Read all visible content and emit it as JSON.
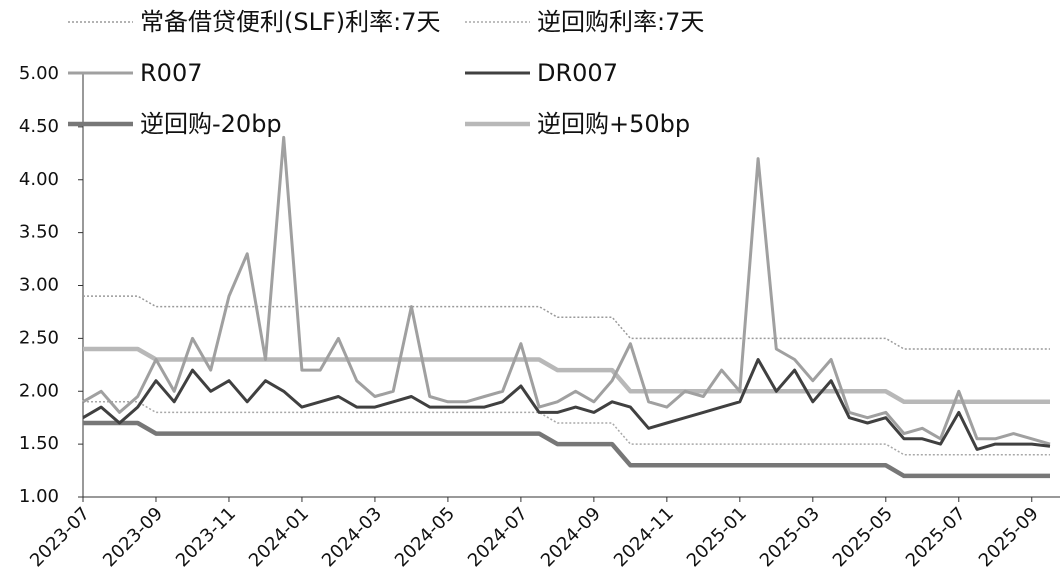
{
  "chart_data": {
    "type": "line",
    "categories": [
      "2023-07",
      null,
      null,
      null,
      "2023-09",
      null,
      null,
      null,
      "2023-11",
      null,
      null,
      null,
      "2024-01",
      null,
      null,
      null,
      "2024-03",
      null,
      null,
      null,
      "2024-05",
      null,
      null,
      null,
      "2024-07",
      null,
      null,
      null,
      "2024-09",
      null,
      null,
      null,
      "2024-11",
      null,
      null,
      null,
      "2025-01",
      null,
      null,
      null,
      "2025-03",
      null,
      null,
      null,
      "2025-05",
      null,
      null,
      null,
      "2025-07",
      null,
      null,
      null,
      "2025-09",
      null
    ],
    "ylim": [
      1,
      5
    ],
    "yticks": [
      {
        "value": 1,
        "label": "1.00"
      },
      {
        "value": 1.5,
        "label": "1.50"
      },
      {
        "value": 2,
        "label": "2.00"
      },
      {
        "value": 2.5,
        "label": "2.50"
      },
      {
        "value": 3,
        "label": "3.00"
      },
      {
        "value": 3.5,
        "label": "3.50"
      },
      {
        "value": 4,
        "label": "4.00"
      },
      {
        "value": 4.5,
        "label": "4.50"
      },
      {
        "value": 5,
        "label": "5.00"
      }
    ],
    "series": [
      {
        "name": "常备借贷便利(SLF)利率:7天",
        "color": "#9a9a9a",
        "style": "dotted",
        "values": [
          2.9,
          2.9,
          2.9,
          2.9,
          2.8,
          2.8,
          2.8,
          2.8,
          2.8,
          2.8,
          2.8,
          2.8,
          2.8,
          2.8,
          2.8,
          2.8,
          2.8,
          2.8,
          2.8,
          2.8,
          2.8,
          2.8,
          2.8,
          2.8,
          2.8,
          2.8,
          2.7,
          2.7,
          2.7,
          2.7,
          2.5,
          2.5,
          2.5,
          2.5,
          2.5,
          2.5,
          2.5,
          2.5,
          2.5,
          2.5,
          2.5,
          2.5,
          2.5,
          2.5,
          2.5,
          2.4,
          2.4,
          2.4,
          2.4,
          2.4,
          2.4,
          2.4,
          2.4,
          2.4
        ]
      },
      {
        "name": "逆回购利率:7天",
        "color": "#a8a8a8",
        "style": "dotted",
        "values": [
          1.9,
          1.9,
          1.9,
          1.9,
          1.8,
          1.8,
          1.8,
          1.8,
          1.8,
          1.8,
          1.8,
          1.8,
          1.8,
          1.8,
          1.8,
          1.8,
          1.8,
          1.8,
          1.8,
          1.8,
          1.8,
          1.8,
          1.8,
          1.8,
          1.8,
          1.8,
          1.7,
          1.7,
          1.7,
          1.7,
          1.5,
          1.5,
          1.5,
          1.5,
          1.5,
          1.5,
          1.5,
          1.5,
          1.5,
          1.5,
          1.5,
          1.5,
          1.5,
          1.5,
          1.5,
          1.4,
          1.4,
          1.4,
          1.4,
          1.4,
          1.4,
          1.4,
          1.4,
          1.4
        ]
      },
      {
        "name": "R007",
        "color": "#a0a0a0",
        "style": "solid",
        "values": [
          1.9,
          2.0,
          1.8,
          1.95,
          2.3,
          2.0,
          2.5,
          2.2,
          2.9,
          3.3,
          2.3,
          4.4,
          2.2,
          2.2,
          2.5,
          2.1,
          1.95,
          2.0,
          2.8,
          1.95,
          1.9,
          1.9,
          1.95,
          2.0,
          2.45,
          1.85,
          1.9,
          2.0,
          1.9,
          2.1,
          2.45,
          1.9,
          1.85,
          2.0,
          1.95,
          2.2,
          2.0,
          4.2,
          2.4,
          2.3,
          2.1,
          2.3,
          1.8,
          1.75,
          1.8,
          1.6,
          1.65,
          1.55,
          2.0,
          1.55,
          1.55,
          1.6,
          1.55,
          1.5
        ]
      },
      {
        "name": "DR007",
        "color": "#404040",
        "style": "solid",
        "values": [
          1.75,
          1.85,
          1.7,
          1.85,
          2.1,
          1.9,
          2.2,
          2.0,
          2.1,
          1.9,
          2.1,
          2.0,
          1.85,
          1.9,
          1.95,
          1.85,
          1.85,
          1.9,
          1.95,
          1.85,
          1.85,
          1.85,
          1.85,
          1.9,
          2.05,
          1.8,
          1.8,
          1.85,
          1.8,
          1.9,
          1.85,
          1.65,
          1.7,
          1.75,
          1.8,
          1.85,
          1.9,
          2.3,
          2.0,
          2.2,
          1.9,
          2.1,
          1.75,
          1.7,
          1.75,
          1.55,
          1.55,
          1.5,
          1.8,
          1.45,
          1.5,
          1.5,
          1.5,
          1.48
        ]
      },
      {
        "name": "逆回购-20bp",
        "color": "#777777",
        "style": "thick",
        "values": [
          1.7,
          1.7,
          1.7,
          1.7,
          1.6,
          1.6,
          1.6,
          1.6,
          1.6,
          1.6,
          1.6,
          1.6,
          1.6,
          1.6,
          1.6,
          1.6,
          1.6,
          1.6,
          1.6,
          1.6,
          1.6,
          1.6,
          1.6,
          1.6,
          1.6,
          1.6,
          1.5,
          1.5,
          1.5,
          1.5,
          1.3,
          1.3,
          1.3,
          1.3,
          1.3,
          1.3,
          1.3,
          1.3,
          1.3,
          1.3,
          1.3,
          1.3,
          1.3,
          1.3,
          1.3,
          1.2,
          1.2,
          1.2,
          1.2,
          1.2,
          1.2,
          1.2,
          1.2,
          1.2
        ]
      },
      {
        "name": "逆回购+50bp",
        "color": "#b8b8b8",
        "style": "thick",
        "values": [
          2.4,
          2.4,
          2.4,
          2.4,
          2.3,
          2.3,
          2.3,
          2.3,
          2.3,
          2.3,
          2.3,
          2.3,
          2.3,
          2.3,
          2.3,
          2.3,
          2.3,
          2.3,
          2.3,
          2.3,
          2.3,
          2.3,
          2.3,
          2.3,
          2.3,
          2.3,
          2.2,
          2.2,
          2.2,
          2.2,
          2.0,
          2.0,
          2.0,
          2.0,
          2.0,
          2.0,
          2.0,
          2.0,
          2.0,
          2.0,
          2.0,
          2.0,
          2.0,
          2.0,
          2.0,
          1.9,
          1.9,
          1.9,
          1.9,
          1.9,
          1.9,
          1.9,
          1.9,
          1.9
        ]
      }
    ]
  }
}
